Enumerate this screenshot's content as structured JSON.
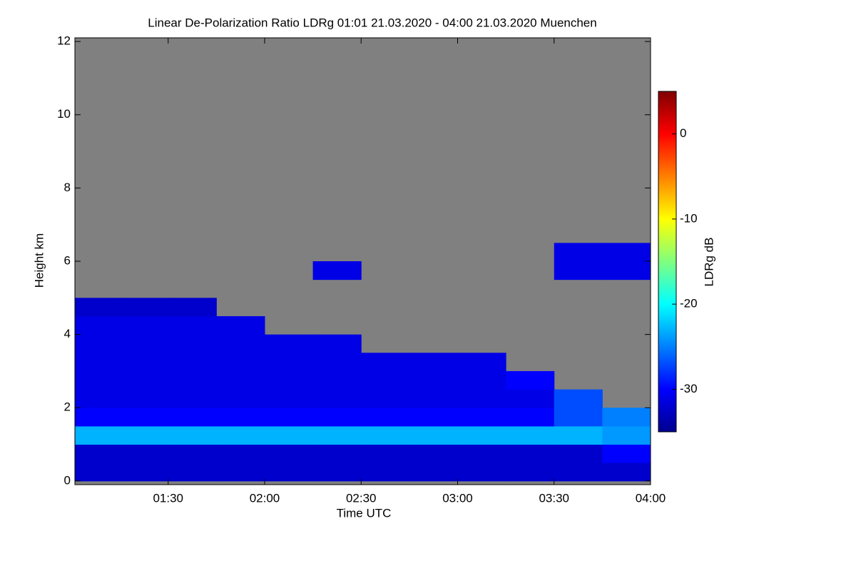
{
  "chart_data": {
    "type": "heatmap",
    "title": "Linear De-Polarization Ratio LDRg   01:01 21.03.2020 - 04:00 21.03.2020 Muenchen",
    "x_label": "Time UTC",
    "y_label": "Height km",
    "colorbar_label": "LDRg dB",
    "xlim": [
      1.0167,
      4.0
    ],
    "xticks": [
      {
        "value": 1.5,
        "label": "01:30"
      },
      {
        "value": 2.0,
        "label": "02:00"
      },
      {
        "value": 2.5,
        "label": "02:30"
      },
      {
        "value": 3.0,
        "label": "03:00"
      },
      {
        "value": 3.5,
        "label": "03:30"
      },
      {
        "value": 4.0,
        "label": "04:00"
      }
    ],
    "ylim": [
      -0.1,
      12.1
    ],
    "yticks": [
      0,
      2,
      4,
      6,
      8,
      10,
      12
    ],
    "clim": [
      -35,
      5
    ],
    "cticks": [
      0,
      -10,
      -20,
      -30
    ],
    "colormap": "jet",
    "no_data_color": "#808080",
    "xbins": [
      1,
      1.25,
      1.5,
      1.75,
      2,
      2.25,
      2.5,
      2.75,
      3,
      3.25,
      3.5,
      3.75,
      4
    ],
    "ybins": [
      0,
      0.5,
      1,
      1.5,
      2,
      2.5,
      3,
      3.5,
      4,
      4.5,
      5,
      5.5,
      6,
      6.5
    ],
    "z": [
      [
        -32,
        -32,
        -32,
        -32,
        -32,
        -32,
        -32,
        -32,
        -32,
        -32,
        -32,
        -32
      ],
      [
        -32,
        -32,
        -32,
        -32,
        -32,
        -32,
        -32,
        -32,
        -32,
        -32,
        -32,
        -30
      ],
      [
        -23,
        -23,
        -23,
        -23,
        -23,
        -23,
        -23,
        -23,
        -23,
        -23,
        -23,
        -24
      ],
      [
        -30,
        -30,
        -30,
        -30,
        -30,
        -30,
        -30,
        -30,
        -30,
        -30,
        -27,
        -25
      ],
      [
        -31,
        -31,
        -31,
        -31,
        -31,
        -31,
        -31,
        -31,
        -31,
        -31,
        -27,
        null
      ],
      [
        -31,
        -31,
        -31,
        -31,
        -31,
        -31,
        -31,
        -31,
        -31,
        -30,
        null,
        null
      ],
      [
        -31,
        -31,
        -31,
        -31,
        -31,
        -31,
        -31,
        -31,
        -31,
        null,
        null,
        null
      ],
      [
        -31,
        -31,
        -31,
        -31,
        -31,
        -31,
        null,
        null,
        null,
        null,
        null,
        null
      ],
      [
        -31,
        -31,
        -31,
        -31,
        null,
        null,
        null,
        null,
        null,
        null,
        null,
        null
      ],
      [
        -32,
        -32,
        -32,
        null,
        null,
        null,
        null,
        null,
        null,
        null,
        null,
        null
      ],
      [
        null,
        null,
        null,
        null,
        null,
        null,
        null,
        null,
        null,
        null,
        null,
        null
      ],
      [
        null,
        null,
        null,
        null,
        null,
        -31,
        null,
        null,
        null,
        null,
        -31,
        -31
      ],
      [
        null,
        null,
        null,
        null,
        null,
        null,
        null,
        null,
        null,
        null,
        -31,
        -31
      ]
    ]
  }
}
